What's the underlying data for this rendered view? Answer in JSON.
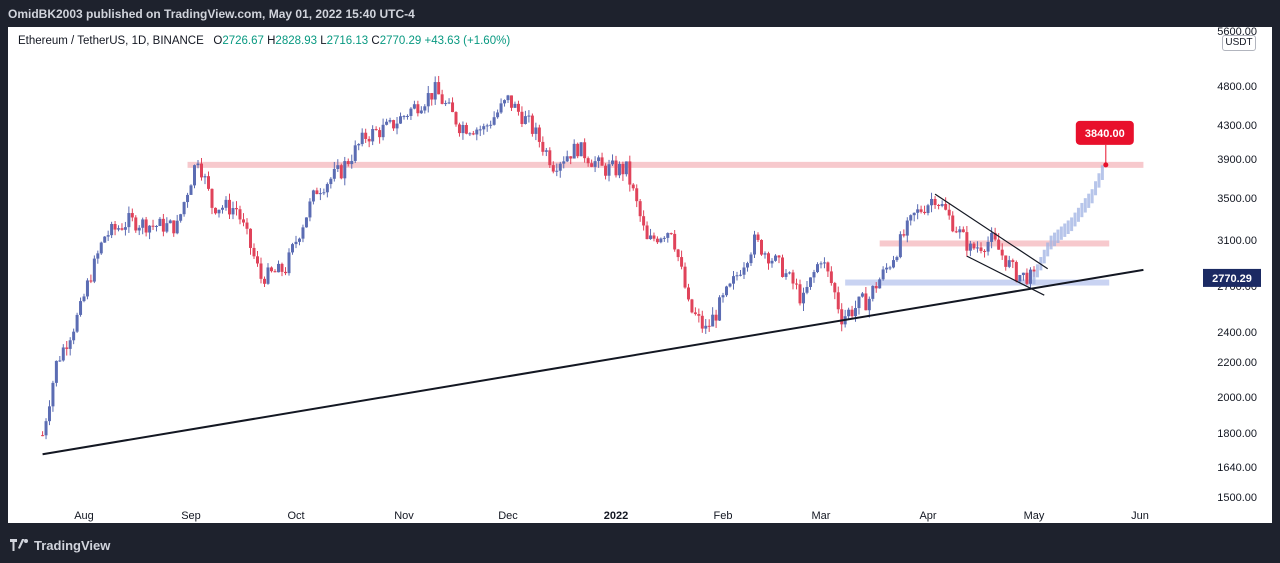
{
  "header": {
    "publisher_line": "OmidBK2003 published on TradingView.com, May 01, 2022 15:40 UTC-4"
  },
  "legend": {
    "symbol": "Ethereum / TetherUS, 1D, BINANCE",
    "o_label": "O",
    "o": "2726.67",
    "h_label": "H",
    "h": "2828.93",
    "l_label": "L",
    "l": "2716.13",
    "c_label": "C",
    "c": "2770.29",
    "change": "+43.63 (+1.60%)"
  },
  "unit": "USDT",
  "footer": {
    "brand": "TradingView"
  },
  "colors": {
    "up": "#5b6cb3",
    "down": "#e0435a",
    "resistance": "#f7c9cd",
    "support": "#c9d3f2",
    "price_tag": "#1b2a63",
    "target_tag": "#e8102c",
    "projection": "#9fb1e3"
  },
  "chart_data": {
    "type": "candlestick",
    "symbol": "ETHUSDT",
    "interval": "1D",
    "ylim": [
      1500,
      5600
    ],
    "y_ticks": [
      "5600.00",
      "4800.00",
      "4300.00",
      "3900.00",
      "3500.00",
      "3100.00",
      "2700.00",
      "2400.00",
      "2200.00",
      "2000.00",
      "1800.00",
      "1640.00",
      "1500.00"
    ],
    "x_ticks": [
      "Aug",
      "Sep",
      "Oct",
      "Nov",
      "Dec",
      "2022",
      "Feb",
      "Mar",
      "Apr",
      "May",
      "Jun"
    ],
    "x_tick_dates": [
      "2021-08-01",
      "2021-09-01",
      "2021-10-01",
      "2021-11-01",
      "2021-12-01",
      "2022-01-01",
      "2022-02-01",
      "2022-03-01",
      "2022-04-01",
      "2022-05-01",
      "2022-06-01"
    ],
    "last_price": "2770.29",
    "target_price": "3840.00",
    "closes": [
      [
        "2021-07-20",
        1790
      ],
      [
        "2021-07-24",
        2190
      ],
      [
        "2021-07-31",
        2540
      ],
      [
        "2021-08-07",
        3140
      ],
      [
        "2021-08-14",
        3280
      ],
      [
        "2021-08-21",
        3240
      ],
      [
        "2021-08-28",
        3230
      ],
      [
        "2021-09-03",
        3930
      ],
      [
        "2021-09-07",
        3430
      ],
      [
        "2021-09-14",
        3400
      ],
      [
        "2021-09-21",
        2770
      ],
      [
        "2021-09-28",
        2850
      ],
      [
        "2021-10-07",
        3590
      ],
      [
        "2021-10-14",
        3780
      ],
      [
        "2021-10-21",
        4170
      ],
      [
        "2021-10-28",
        4280
      ],
      [
        "2021-11-04",
        4530
      ],
      [
        "2021-11-10",
        4740
      ],
      [
        "2021-11-17",
        4300
      ],
      [
        "2021-11-24",
        4250
      ],
      [
        "2021-12-01",
        4620
      ],
      [
        "2021-12-07",
        4320
      ],
      [
        "2021-12-14",
        3850
      ],
      [
        "2021-12-21",
        4030
      ],
      [
        "2021-12-28",
        3800
      ],
      [
        "2022-01-04",
        3790
      ],
      [
        "2022-01-10",
        3080
      ],
      [
        "2022-01-17",
        3210
      ],
      [
        "2022-01-22",
        2560
      ],
      [
        "2022-01-27",
        2410
      ],
      [
        "2022-02-03",
        2680
      ],
      [
        "2022-02-10",
        3090
      ],
      [
        "2022-02-17",
        2880
      ],
      [
        "2022-02-24",
        2600
      ],
      [
        "2022-03-01",
        2950
      ],
      [
        "2022-03-07",
        2500
      ],
      [
        "2022-03-15",
        2620
      ],
      [
        "2022-03-21",
        2900
      ],
      [
        "2022-03-28",
        3330
      ],
      [
        "2022-04-03",
        3520
      ],
      [
        "2022-04-08",
        3260
      ],
      [
        "2022-04-13",
        3020
      ],
      [
        "2022-04-19",
        3100
      ],
      [
        "2022-04-26",
        2800
      ],
      [
        "2022-05-01",
        2770
      ]
    ],
    "projection": [
      [
        "2022-05-01",
        2770
      ],
      [
        "2022-05-06",
        3080
      ],
      [
        "2022-05-12",
        3250
      ],
      [
        "2022-05-18",
        3520
      ],
      [
        "2022-05-22",
        3840
      ]
    ],
    "levels": [
      {
        "kind": "resistance",
        "price": 3840,
        "from": "2021-08-31",
        "to": "2022-06-02"
      },
      {
        "kind": "resistance",
        "price": 3070,
        "from": "2022-03-18",
        "to": "2022-05-23"
      },
      {
        "kind": "support",
        "price": 2730,
        "from": "2022-03-08",
        "to": "2022-05-23"
      }
    ],
    "trendlines": [
      {
        "from": [
          "2021-07-20",
          1700
        ],
        "to": [
          "2022-06-02",
          2840
        ]
      },
      {
        "from": [
          "2022-04-03",
          3540
        ],
        "to": [
          "2022-05-05",
          2850
        ]
      },
      {
        "from": [
          "2022-04-12",
          2960
        ],
        "to": [
          "2022-05-04",
          2640
        ]
      }
    ]
  }
}
